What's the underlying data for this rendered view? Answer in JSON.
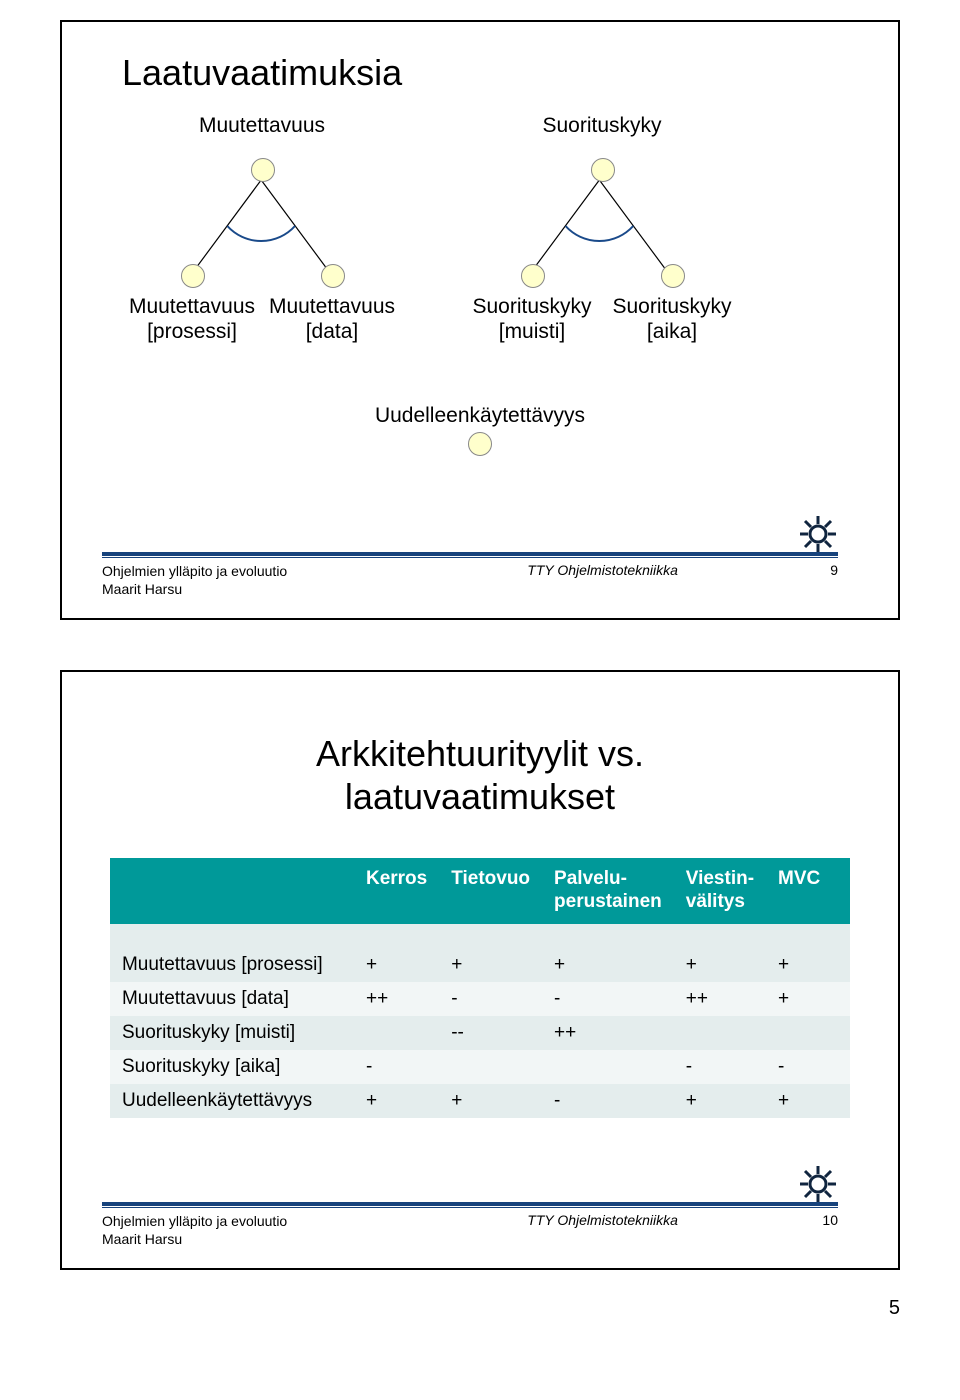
{
  "page_number_bottom": "5",
  "slide1": {
    "title": "Laatuvaatimuksia",
    "tree1": {
      "root_label": "Muutettavuus",
      "leaf_left": "Muutettavuus\n[prosessi]",
      "leaf_right": "Muutettavuus\n[data]"
    },
    "tree2": {
      "root_label": "Suorituskyky",
      "leaf_left": "Suorituskyky\n[muisti]",
      "leaf_right": "Suorituskyky\n[aika]"
    },
    "reuse_label": "Uudelleenkäytettävyys",
    "footer": {
      "left_line1": "Ohjelmien ylläpito ja evoluutio",
      "left_line2": "Maarit Harsu",
      "mid": "TTY Ohjelmistotekniikka",
      "num": "9"
    },
    "diagram_style": {
      "node_fill": "#ffffcc",
      "node_stroke": "#888888",
      "edge_stroke": "#000000",
      "arc_stroke": "#1a4a8a"
    }
  },
  "slide2": {
    "title": "Arkkitehtuurityylit vs.\nlaatuvaatimukset",
    "table": {
      "header_bg": "#009999",
      "header_fg": "#ffffff",
      "row_bg_odd": "#e4eded",
      "row_bg_even": "#f2f6f6",
      "columns": [
        "",
        "Kerros",
        "Tietovuo",
        "Palvelu-\nperustainen",
        "Viestin-\nvälitys",
        "MVC"
      ],
      "rows": [
        {
          "label": "Muutettavuus [prosessi]",
          "cells": [
            "+",
            "+",
            "+",
            "+",
            "+"
          ]
        },
        {
          "label": "Muutettavuus [data]",
          "cells": [
            "++",
            "-",
            "-",
            "++",
            "+"
          ]
        },
        {
          "label": "Suorituskyky [muisti]",
          "cells": [
            "",
            "--",
            "++",
            "",
            ""
          ]
        },
        {
          "label": "Suorituskyky [aika]",
          "cells": [
            "-",
            "",
            "",
            "-",
            "-"
          ]
        },
        {
          "label": "Uudelleenkäytettävyys",
          "cells": [
            "+",
            "+",
            "-",
            "+",
            "+"
          ]
        }
      ]
    },
    "footer": {
      "left_line1": "Ohjelmien ylläpito ja evoluutio",
      "left_line2": "Maarit Harsu",
      "mid": "TTY Ohjelmistotekniikka",
      "num": "10"
    }
  }
}
